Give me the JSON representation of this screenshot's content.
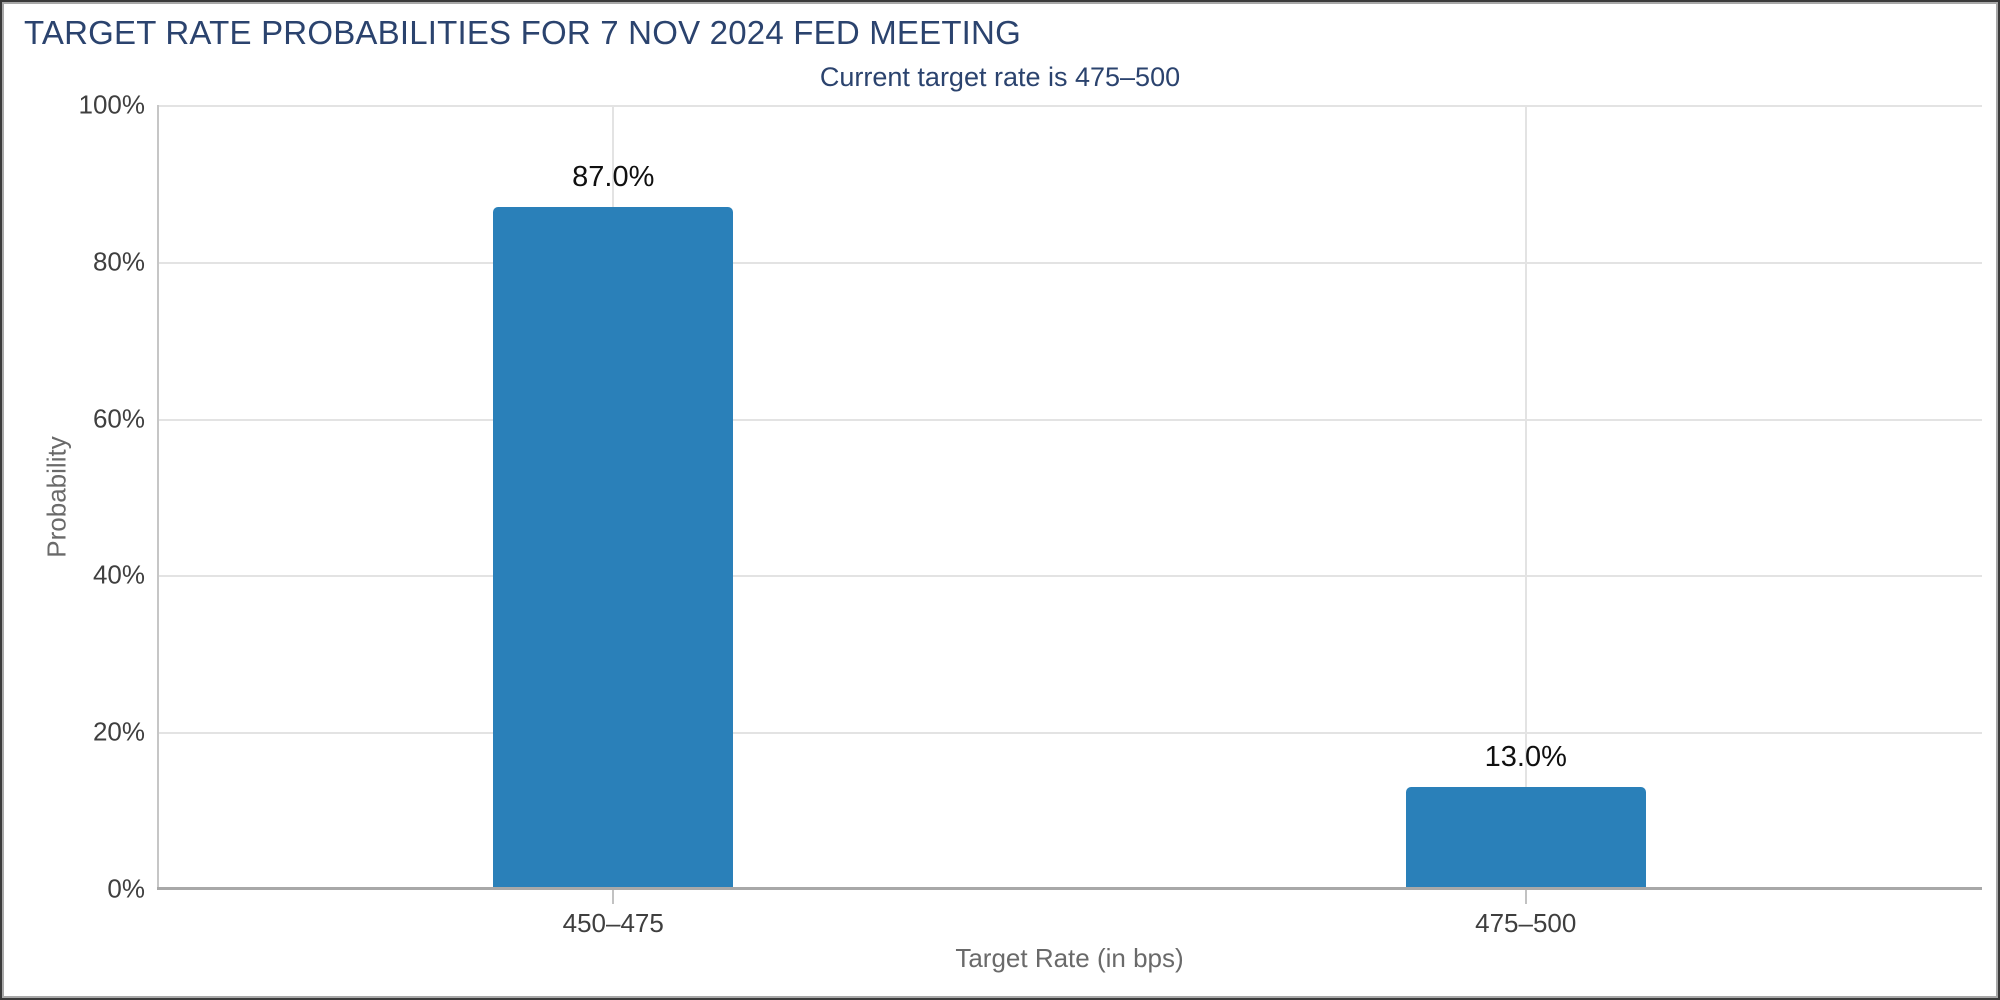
{
  "header": {
    "title": "TARGET RATE PROBABILITIES FOR 7 NOV 2024 FED MEETING",
    "subtitle": "Current target rate is 475–500"
  },
  "colors": {
    "title_navy": "#2b436e",
    "bar_blue": "#2a80b9",
    "gridline": "#e3e3e3",
    "axis_line": "#a8a8a8",
    "tick_label": "#3f3f3f",
    "axis_title": "#6a6a6a"
  },
  "chart_data": {
    "type": "bar",
    "title": "TARGET RATE PROBABILITIES FOR 7 NOV 2024 FED MEETING",
    "subtitle": "Current target rate is 475–500",
    "categories": [
      "450–475",
      "475–500"
    ],
    "values": [
      87.0,
      13.0
    ],
    "value_labels": [
      "87.0%",
      "13.0%"
    ],
    "xlabel": "Target Rate (in bps)",
    "ylabel": "Probability",
    "ylim": [
      0,
      100
    ],
    "ytick_labels_top_to_bottom": [
      "100%",
      "80%",
      "60%",
      "40%",
      "20%",
      "0%"
    ],
    "grid": "on",
    "legend": "none"
  }
}
